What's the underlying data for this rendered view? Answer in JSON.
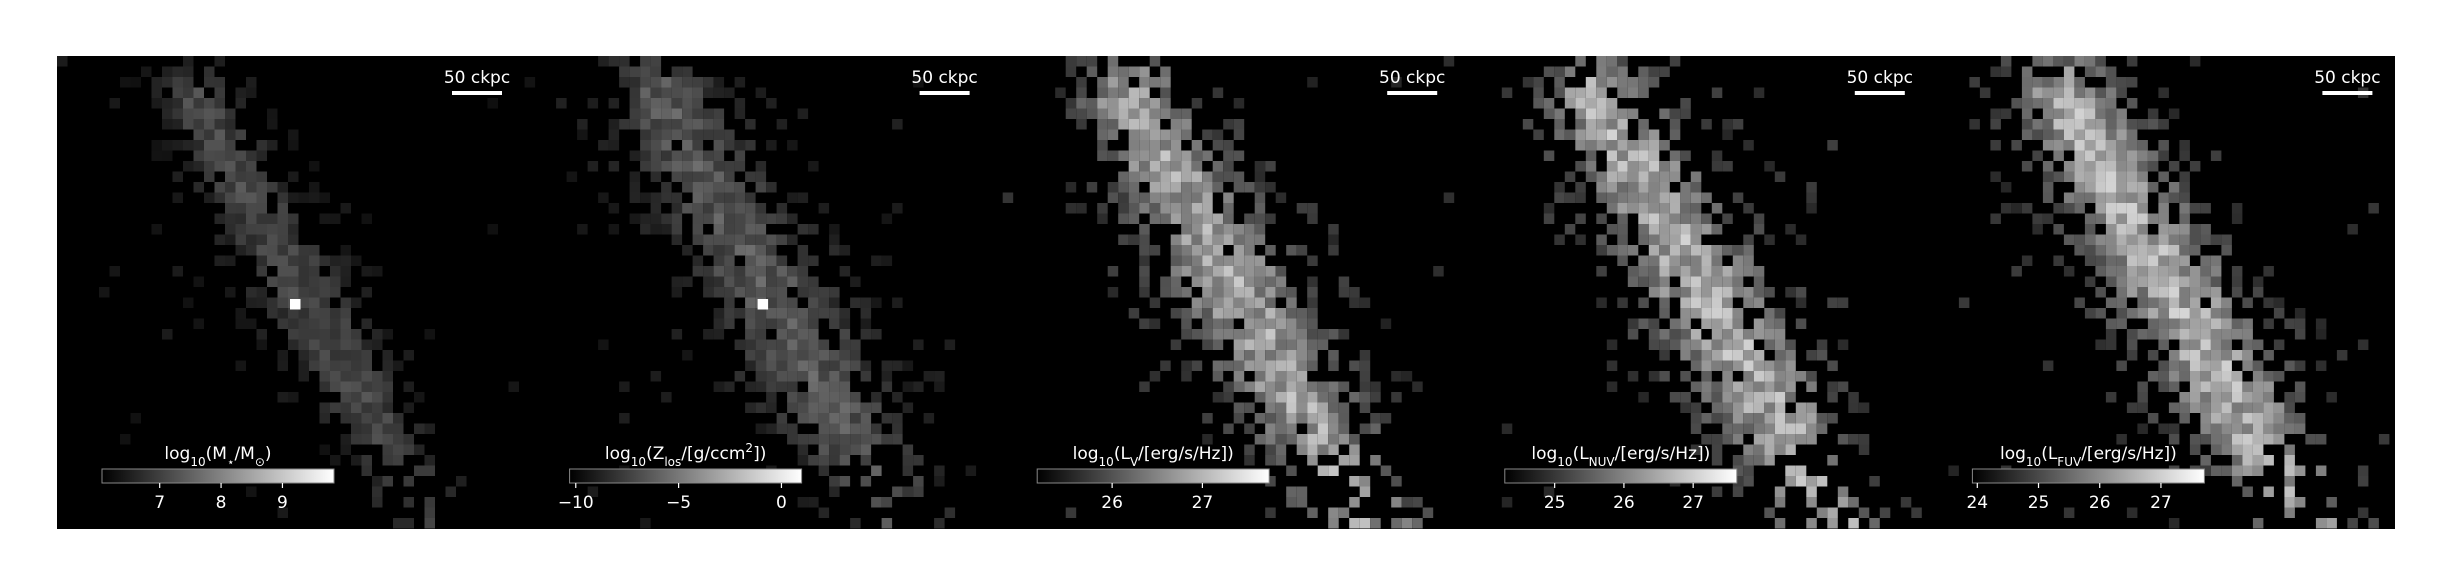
{
  "panels": [
    {
      "scale_bar": "50 ckpc",
      "colorbar": {
        "label": [
          {
            "text": "log"
          },
          {
            "text": "10",
            "sub": true
          },
          {
            "text": "(M"
          },
          {
            "text": "⋆",
            "sub": true
          },
          {
            "text": "/M"
          },
          {
            "text": "⊙",
            "sub": true
          },
          {
            "text": ")"
          }
        ],
        "lim": [
          6.06,
          9.84
        ],
        "ticks": [
          7,
          8,
          9
        ]
      }
    },
    {
      "scale_bar": "50 ckpc",
      "colorbar": {
        "label": [
          {
            "text": "log"
          },
          {
            "text": "10",
            "sub": true
          },
          {
            "text": "(Z"
          },
          {
            "text": "los",
            "sub": true
          },
          {
            "text": "/[g/ccm"
          },
          {
            "text": "2",
            "sup": true
          },
          {
            "text": "])"
          }
        ],
        "lim": [
          -10.3,
          0.98
        ],
        "ticks": [
          {
            "value": -10,
            "label": "−10"
          },
          {
            "value": -5,
            "label": "−5"
          },
          0
        ]
      }
    },
    {
      "scale_bar": "50 ckpc",
      "colorbar": {
        "label": [
          {
            "text": "log"
          },
          {
            "text": "10",
            "sub": true
          },
          {
            "text": "(L"
          },
          {
            "text": "V",
            "sub": true
          },
          {
            "text": "/[erg/s/Hz])"
          }
        ],
        "lim": [
          25.17,
          27.74
        ],
        "ticks": [
          26,
          27
        ]
      }
    },
    {
      "scale_bar": "50 ckpc",
      "colorbar": {
        "label": [
          {
            "text": "log"
          },
          {
            "text": "10",
            "sub": true
          },
          {
            "text": "(L"
          },
          {
            "text": "NUV",
            "sub": true
          },
          {
            "text": "/[erg/s/Hz])"
          }
        ],
        "lim": [
          24.28,
          27.63
        ],
        "ticks": [
          25,
          26,
          27
        ]
      }
    },
    {
      "scale_bar": "50 ckpc",
      "colorbar": {
        "label": [
          {
            "text": "log"
          },
          {
            "text": "10",
            "sub": true
          },
          {
            "text": "(L"
          },
          {
            "text": "FUV",
            "sub": true
          },
          {
            "text": "/[erg/s/Hz])"
          }
        ],
        "lim": [
          23.92,
          27.71
        ],
        "ticks": [
          24,
          25,
          26,
          27
        ]
      }
    }
  ]
}
